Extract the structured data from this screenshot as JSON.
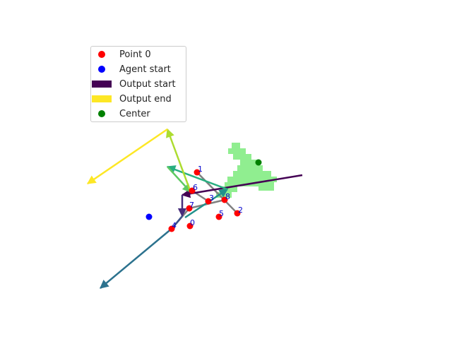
{
  "legend": {
    "point0": "Point 0",
    "agent_start": "Agent start",
    "output_start": "Output start",
    "output_end": "Output end",
    "center": "Center"
  },
  "colors": {
    "points": "#ff0000",
    "agent": "#0000ff",
    "output_start": "#440154",
    "output_end": "#fde725",
    "center": "#008000",
    "region": "#90ee90",
    "connector": "#808080",
    "labels": "#0000cc"
  },
  "point_labels": [
    "0",
    "1",
    "2",
    "3",
    "4",
    "5",
    "6",
    "7",
    "8"
  ]
}
